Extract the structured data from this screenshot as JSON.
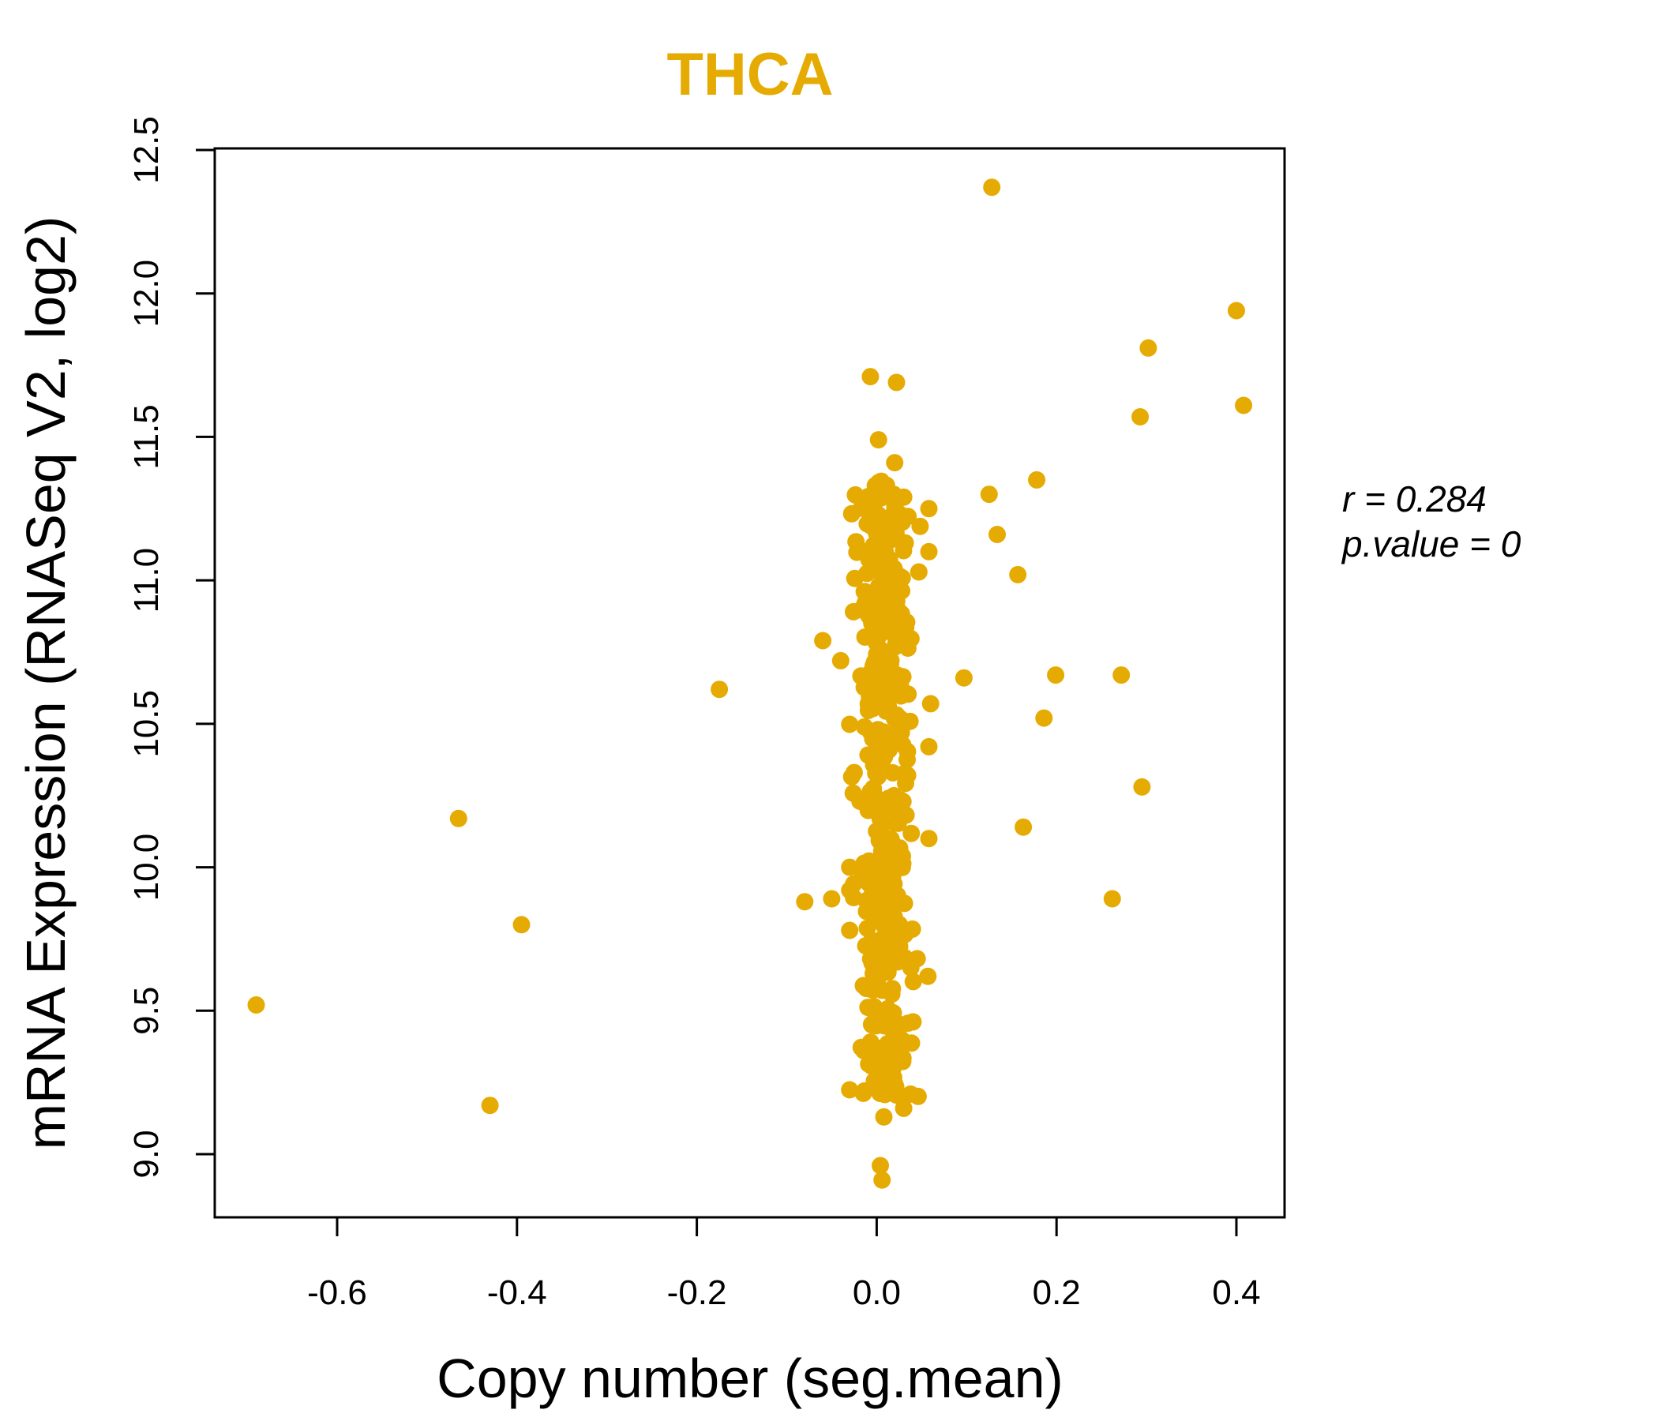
{
  "chart_data": {
    "type": "scatter",
    "title": "THCA",
    "xlabel": "Copy number (seg.mean)",
    "ylabel": "mRNA Expression (RNASeq V2, log2)",
    "xlim": [
      -0.7,
      0.42
    ],
    "ylim": [
      8.88,
      12.6
    ],
    "xticks": [
      "-0.6",
      "-0.4",
      "-0.2",
      "0.0",
      "0.2",
      "0.4"
    ],
    "yticks": [
      "9.0",
      "9.5",
      "10.0",
      "10.5",
      "11.0",
      "11.5",
      "12.0",
      "12.5"
    ],
    "stats": {
      "r": "r = 0.284",
      "p": "p.value = 0"
    },
    "colors": {
      "points": "#E6AB02",
      "title": "#E6AB02",
      "axis": "#000000"
    },
    "outliers": [
      [
        -0.69,
        9.52
      ],
      [
        -0.465,
        10.17
      ],
      [
        -0.43,
        9.17
      ],
      [
        -0.395,
        9.8
      ],
      [
        -0.175,
        10.62
      ],
      [
        -0.08,
        9.88
      ],
      [
        -0.06,
        10.79
      ],
      [
        -0.05,
        9.89
      ],
      [
        -0.04,
        10.72
      ],
      [
        -0.03,
        9.78
      ],
      [
        -0.03,
        9.92
      ],
      [
        -0.03,
        10.0
      ],
      [
        -0.025,
        10.33
      ],
      [
        -0.007,
        11.71
      ],
      [
        0.002,
        11.49
      ],
      [
        0.02,
        11.41
      ],
      [
        0.022,
        11.69
      ],
      [
        0.03,
        11.29
      ],
      [
        0.058,
        11.25
      ],
      [
        0.058,
        11.1
      ],
      [
        0.03,
        9.16
      ],
      [
        0.008,
        9.13
      ],
      [
        0.004,
        8.96
      ],
      [
        0.006,
        8.91
      ],
      [
        0.038,
        9.65
      ],
      [
        0.057,
        9.62
      ],
      [
        0.058,
        10.1
      ],
      [
        0.058,
        10.42
      ],
      [
        0.06,
        10.57
      ],
      [
        0.097,
        10.66
      ],
      [
        0.125,
        11.3
      ],
      [
        0.128,
        12.37
      ],
      [
        0.134,
        11.16
      ],
      [
        0.157,
        11.02
      ],
      [
        0.163,
        10.14
      ],
      [
        0.178,
        11.35
      ],
      [
        0.186,
        10.52
      ],
      [
        0.199,
        10.67
      ],
      [
        0.262,
        9.89
      ],
      [
        0.272,
        10.67
      ],
      [
        0.293,
        11.57
      ],
      [
        0.295,
        10.28
      ],
      [
        0.302,
        11.81
      ],
      [
        0.4,
        11.94
      ],
      [
        0.408,
        11.61
      ]
    ],
    "core_cluster": {
      "x_center": 0.008,
      "x_spread": 0.014,
      "y_min": 9.2,
      "y_max": 11.35,
      "count": 420
    }
  }
}
